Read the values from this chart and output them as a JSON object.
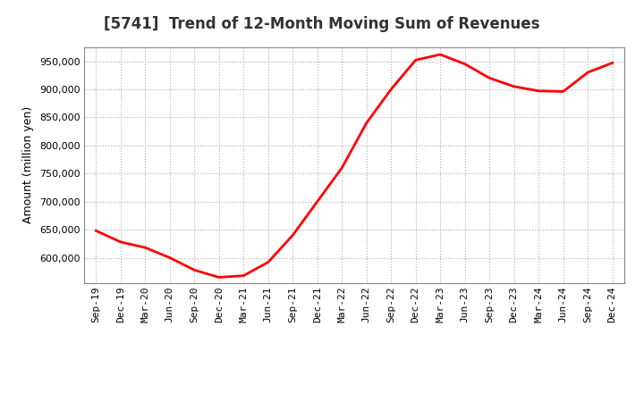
{
  "title": "[5741]  Trend of 12-Month Moving Sum of Revenues",
  "ylabel": "Amount (million yen)",
  "line_color": "#ff0000",
  "line_width": 2.0,
  "background_color": "#ffffff",
  "grid_color": "#b0b0b0",
  "x_labels": [
    "Sep-19",
    "Dec-19",
    "Mar-20",
    "Jun-20",
    "Sep-20",
    "Dec-20",
    "Mar-21",
    "Jun-21",
    "Sep-21",
    "Dec-21",
    "Mar-22",
    "Jun-22",
    "Sep-22",
    "Dec-22",
    "Mar-23",
    "Jun-23",
    "Sep-23",
    "Dec-23",
    "Mar-24",
    "Jun-24",
    "Sep-24",
    "Dec-24"
  ],
  "y_values": [
    648000,
    628000,
    618000,
    600000,
    578000,
    565000,
    568000,
    592000,
    640000,
    700000,
    760000,
    840000,
    900000,
    952000,
    962000,
    945000,
    920000,
    905000,
    897000,
    896000,
    930000,
    947000
  ],
  "ylim_min": 555000,
  "ylim_max": 975000,
  "yticks": [
    600000,
    650000,
    700000,
    750000,
    800000,
    850000,
    900000,
    950000
  ]
}
